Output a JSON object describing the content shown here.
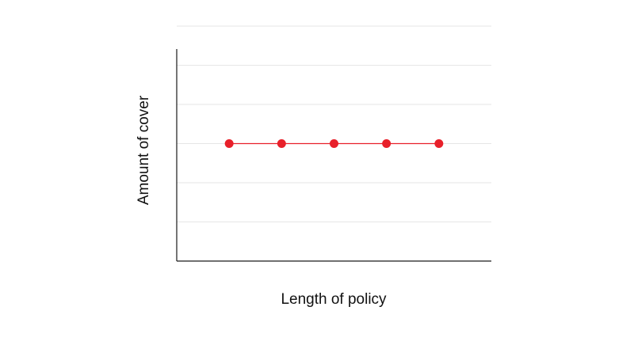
{
  "chart_data": {
    "type": "line",
    "title": "",
    "xlabel": "Length of policy",
    "ylabel": "Amount of cover",
    "x": [
      1,
      2,
      3,
      4,
      5
    ],
    "xlim": [
      0,
      6
    ],
    "ylim": [
      0,
      6
    ],
    "yticks": [
      1,
      2,
      3,
      4,
      5,
      6
    ],
    "grid": true,
    "series": [
      {
        "values": [
          3,
          3,
          3,
          3,
          3
        ],
        "color": "#e8202a"
      }
    ]
  }
}
